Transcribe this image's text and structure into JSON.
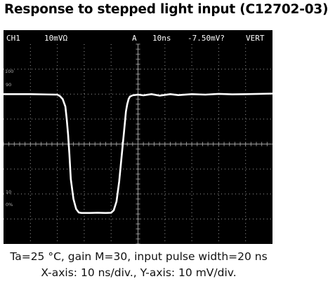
{
  "title": "Response to stepped light input (C12702-03)",
  "chart_data": {
    "type": "line",
    "title": "Response to stepped light input (C12702-03)",
    "xlabel": "",
    "ylabel": "",
    "x_unit": "ns",
    "y_unit": "mV",
    "xlim": [
      0,
      100
    ],
    "ylim": [
      -80,
      0
    ],
    "x_per_div_ns": 10,
    "y_per_div_mV": 10,
    "grid": true,
    "series": [
      {
        "values_x": [
          0,
          10,
          20,
          21,
          22,
          23,
          23.5,
          24,
          24.5,
          25,
          26,
          27,
          28,
          29,
          30,
          32,
          35,
          38,
          40,
          41,
          42,
          43,
          44,
          45,
          45.5,
          46,
          46.5,
          47,
          48,
          50,
          52,
          55,
          58,
          62,
          65,
          70,
          75,
          80,
          85,
          90,
          95,
          100
        ],
        "values_y": [
          -20,
          -20,
          -20.2,
          -20.8,
          -22,
          -25,
          -30,
          -36,
          -44,
          -54,
          -62,
          -66,
          -67.4,
          -67.6,
          -67.6,
          -67.6,
          -67.5,
          -67.6,
          -67.5,
          -66.5,
          -63,
          -55,
          -44,
          -33,
          -27,
          -24,
          -22,
          -21,
          -20.5,
          -20.2,
          -20.5,
          -20,
          -20.6,
          -20,
          -20.4,
          -20,
          -20.2,
          -19.9,
          -20.1,
          -20,
          -19.9,
          -19.8
        ]
      }
    ],
    "scope_header": {
      "channel": "CH1",
      "volts_per_div": "10mVΩ",
      "trigger": "A",
      "time_per_div": "10ns",
      "trigger_level": "-7.50mV?",
      "mode": "VERT"
    },
    "reference_labels": [
      "100",
      "90",
      "10",
      "0%"
    ]
  },
  "captions": {
    "line1": "Ta=25 °C, gain M=30, input pulse width=20 ns",
    "line2": "X-axis: 10 ns/div., Y-axis: 10 mV/div."
  },
  "colors": {
    "background": "#000000",
    "trace": "#ffffff",
    "grid": "#9a9a9a"
  }
}
